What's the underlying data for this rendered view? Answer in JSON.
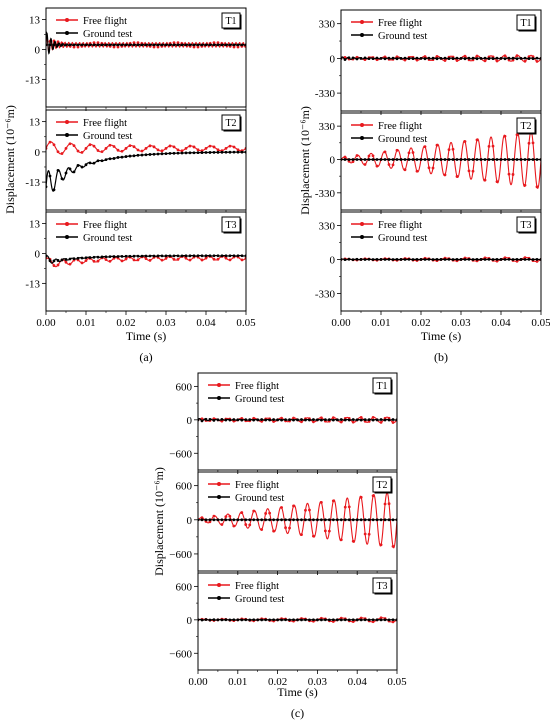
{
  "figure": {
    "captions": [
      "(a)",
      "(b)",
      "(c)"
    ]
  },
  "colors": {
    "free_flight": "#e8191e",
    "ground_test": "#000000"
  },
  "legend": {
    "free_flight": "Free flight",
    "ground_test": "Ground test"
  },
  "chart_data": [
    {
      "id": "a",
      "type": "line",
      "caption": "(a)",
      "xlabel": "Time (s)",
      "ylabel": "Displacement (10⁻⁶m)",
      "xlim": [
        0,
        0.05
      ],
      "xticks": [
        "0.00",
        "0.01",
        "0.02",
        "0.03",
        "0.04",
        "0.05"
      ],
      "legend_placement": "top-left",
      "panels": [
        {
          "tag": "T1",
          "ylim": [
            -25,
            18
          ],
          "yticks": [
            {
              "v": 13,
              "label": "13"
            },
            {
              "v": 0,
              "label": "0"
            },
            {
              "v": -13,
              "label": "-13"
            }
          ],
          "series": [
            {
              "name": "Free flight",
              "model": {
                "offset": 2,
                "a0": 4,
                "tau": 0.0015,
                "a_end": 1.0,
                "growth": 0,
                "f": 1100
              }
            },
            {
              "name": "Ground test",
              "model": {
                "offset": 2,
                "a0": 6,
                "tau": 0.0015,
                "a_end": 0.2,
                "growth": 0,
                "f": 1000
              }
            }
          ]
        },
        {
          "tag": "T2",
          "ylim": [
            -25,
            18
          ],
          "yticks": [
            {
              "v": 13,
              "label": "13"
            },
            {
              "v": 0,
              "label": "0"
            },
            {
              "v": -13,
              "label": "-13"
            }
          ],
          "series": [
            {
              "name": "Free flight",
              "model": {
                "offset": 1.5,
                "a0": 3,
                "tau": 0.01,
                "a_end": 1.0,
                "growth": 0,
                "f": 200
              }
            },
            {
              "name": "Ground test",
              "model": {
                "step": true,
                "A": -15,
                "tau": 0.01,
                "a0": 7,
                "tau2": 0.004,
                "f": 400
              }
            }
          ]
        },
        {
          "tag": "T3",
          "ylim": [
            -25,
            18
          ],
          "yticks": [
            {
              "v": 13,
              "label": "13"
            },
            {
              "v": 0,
              "label": "0"
            },
            {
              "v": -13,
              "label": "-13"
            }
          ],
          "series": [
            {
              "name": "Free flight",
              "model": {
                "offset": -2,
                "a0": 2,
                "tau": 0.004,
                "a_end": 0.8,
                "growth": 0,
                "f": 300,
                "settle": -3,
                "settle_tau": 0.01
              }
            },
            {
              "name": "Ground test",
              "model": {
                "offset": -1,
                "a0": 1.5,
                "tau": 0.003,
                "a_end": 0.1,
                "growth": 0,
                "f": 500,
                "settle": -3,
                "settle_tau": 0.008
              }
            }
          ]
        }
      ]
    },
    {
      "id": "b",
      "type": "line",
      "caption": "(b)",
      "xlabel": "Time (s)",
      "ylabel": "Displacement (10⁻⁶m)",
      "xlim": [
        0,
        0.05
      ],
      "xticks": [
        "0.00",
        "0.01",
        "0.02",
        "0.03",
        "0.04",
        "0.05"
      ],
      "legend_placement": "top-left",
      "panels": [
        {
          "tag": "T1",
          "ylim": [
            -500,
            460
          ],
          "yticks": [
            {
              "v": 330,
              "label": "330"
            },
            {
              "v": 0,
              "label": "0"
            },
            {
              "v": -330,
              "label": "-330"
            }
          ],
          "series": [
            {
              "name": "Free flight",
              "model": {
                "offset": 0,
                "a0": 10,
                "tau": 1,
                "a_end": 30,
                "growth": 1,
                "f": 300
              }
            },
            {
              "name": "Ground test",
              "model": {
                "offset": 0,
                "a0": 15,
                "tau": 0.003,
                "a_end": 3,
                "growth": 0,
                "f": 700
              }
            }
          ]
        },
        {
          "tag": "T2",
          "ylim": [
            -500,
            460
          ],
          "yticks": [
            {
              "v": 330,
              "label": "330"
            },
            {
              "v": 0,
              "label": "0"
            },
            {
              "v": -330,
              "label": "-330"
            }
          ],
          "series": [
            {
              "name": "Free flight",
              "model": {
                "offset": 0,
                "a0": 20,
                "tau": 1,
                "a_end": 290,
                "growth": 1,
                "f": 300
              }
            },
            {
              "name": "Ground test",
              "model": {
                "offset": 0,
                "a0": 0,
                "tau": 1,
                "a_end": 0,
                "growth": 0,
                "f": 300
              }
            }
          ]
        },
        {
          "tag": "T3",
          "ylim": [
            -500,
            460
          ],
          "yticks": [
            {
              "v": 330,
              "label": "330"
            },
            {
              "v": 0,
              "label": "0"
            },
            {
              "v": -330,
              "label": "-330"
            }
          ],
          "series": [
            {
              "name": "Free flight",
              "model": {
                "offset": 0,
                "a0": 5,
                "tau": 1,
                "a_end": 20,
                "growth": 1,
                "f": 200
              }
            },
            {
              "name": "Ground test",
              "model": {
                "offset": 0,
                "a0": 4,
                "tau": 0.003,
                "a_end": 1,
                "growth": 0,
                "f": 600
              }
            }
          ]
        }
      ]
    },
    {
      "id": "c",
      "type": "line",
      "caption": "(c)",
      "xlabel": "Time (s)",
      "ylabel": "Displacement (10⁻⁶m)",
      "xlim": [
        0,
        0.05
      ],
      "xticks": [
        "0.00",
        "0.01",
        "0.02",
        "0.03",
        "0.04",
        "0.05"
      ],
      "legend_placement": "top-left",
      "panels": [
        {
          "tag": "T1",
          "ylim": [
            -900,
            840
          ],
          "yticks": [
            {
              "v": 600,
              "label": "600"
            },
            {
              "v": 0,
              "label": "0"
            },
            {
              "v": -600,
              "label": "−600"
            }
          ],
          "series": [
            {
              "name": "Free flight",
              "model": {
                "offset": 0,
                "a0": 20,
                "tau": 1,
                "a_end": 50,
                "growth": 1,
                "f": 300
              }
            },
            {
              "name": "Ground test",
              "model": {
                "offset": 0,
                "a0": 25,
                "tau": 0.003,
                "a_end": 5,
                "growth": 0,
                "f": 700
              }
            }
          ]
        },
        {
          "tag": "T2",
          "ylim": [
            -900,
            840
          ],
          "yticks": [
            {
              "v": 600,
              "label": "600"
            },
            {
              "v": 0,
              "label": "0"
            },
            {
              "v": -600,
              "label": "−600"
            }
          ],
          "series": [
            {
              "name": "Free flight",
              "model": {
                "offset": 0,
                "a0": 30,
                "tau": 1,
                "a_end": 500,
                "growth": 1,
                "f": 300
              }
            },
            {
              "name": "Ground test",
              "model": {
                "offset": 0,
                "a0": 0,
                "tau": 1,
                "a_end": 0,
                "growth": 0,
                "f": 300
              }
            }
          ]
        },
        {
          "tag": "T3",
          "ylim": [
            -900,
            840
          ],
          "yticks": [
            {
              "v": 600,
              "label": "600"
            },
            {
              "v": 0,
              "label": "0"
            },
            {
              "v": -600,
              "label": "−600"
            }
          ],
          "series": [
            {
              "name": "Free flight",
              "model": {
                "offset": 0,
                "a0": 10,
                "tau": 1,
                "a_end": 40,
                "growth": 1,
                "f": 200
              }
            },
            {
              "name": "Ground test",
              "model": {
                "offset": 0,
                "a0": 8,
                "tau": 0.003,
                "a_end": 2,
                "growth": 0,
                "f": 600
              }
            }
          ]
        }
      ]
    }
  ]
}
